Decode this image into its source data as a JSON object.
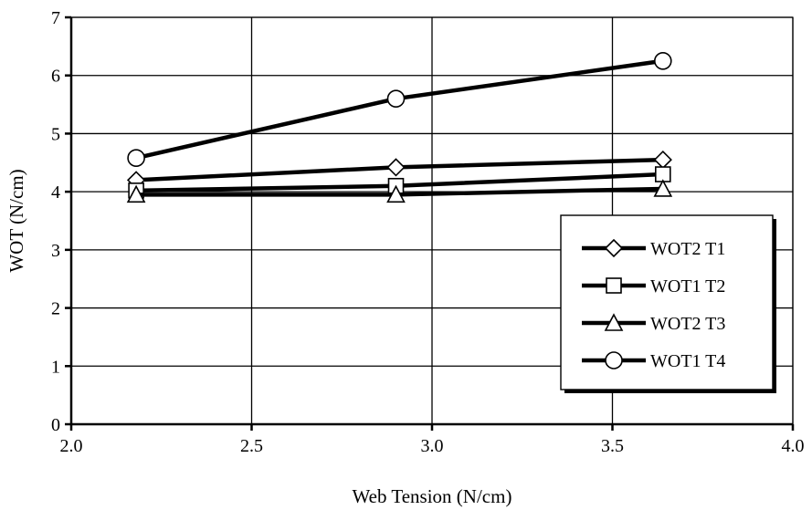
{
  "chart_data": {
    "type": "line",
    "xlabel": "Web Tension (N/cm)",
    "ylabel": "WOT (N/cm)",
    "xlim": [
      2.0,
      4.0
    ],
    "ylim": [
      0,
      7
    ],
    "x_ticks": [
      "2.0",
      "2.5",
      "3.0",
      "3.5",
      "4.0"
    ],
    "y_ticks": [
      "0",
      "1",
      "2",
      "3",
      "4",
      "5",
      "6",
      "7"
    ],
    "grid": true,
    "legend_position": "bottom-right",
    "series": [
      {
        "name": "WOT2 T1",
        "marker": "diamond",
        "x": [
          2.18,
          2.9,
          3.64
        ],
        "y": [
          4.2,
          4.42,
          4.55
        ]
      },
      {
        "name": "WOT1 T2",
        "marker": "square",
        "x": [
          2.18,
          2.9,
          3.64
        ],
        "y": [
          4.02,
          4.1,
          4.3
        ]
      },
      {
        "name": "WOT2 T3",
        "marker": "triangle",
        "x": [
          2.18,
          2.9,
          3.64
        ],
        "y": [
          3.95,
          3.95,
          4.05
        ]
      },
      {
        "name": "WOT1 T4",
        "marker": "circle",
        "x": [
          2.18,
          2.9,
          3.64
        ],
        "y": [
          4.58,
          5.6,
          6.25
        ]
      }
    ]
  }
}
